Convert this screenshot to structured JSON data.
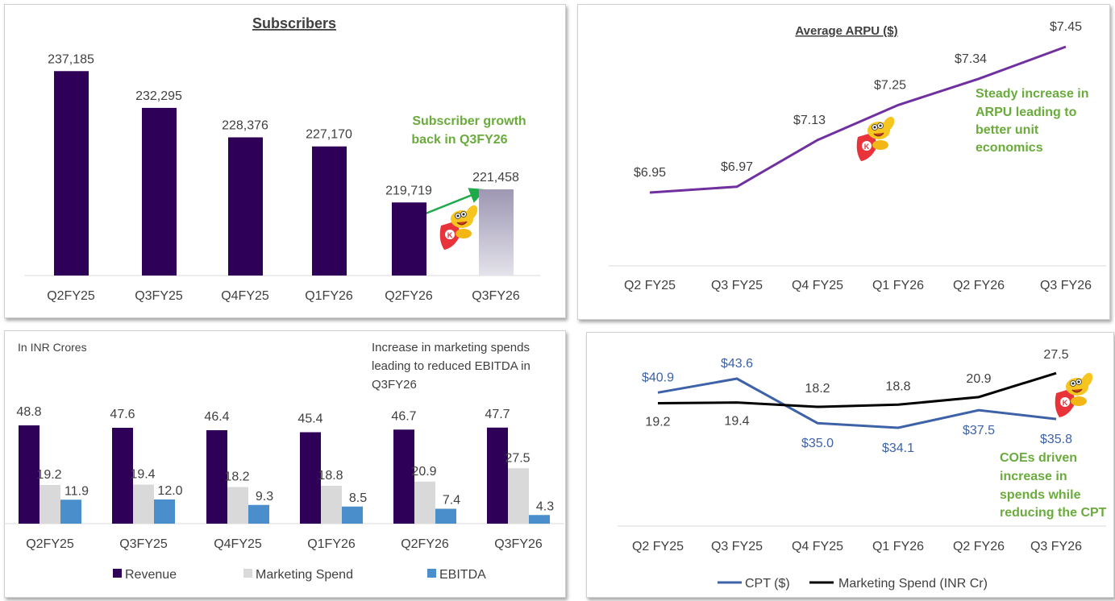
{
  "colors": {
    "purple": "#2e0057",
    "gray": "#d9d9d9",
    "blue": "#4a8fcc",
    "green": "#6aab3c",
    "arpu_line": "#7030a0",
    "cpt_line": "#3d62a8",
    "marketing_line": "#000000",
    "arrow": "#1faa4a"
  },
  "chart_data": [
    {
      "type": "bar",
      "title": "Subscribers",
      "categories": [
        "Q2FY25",
        "Q3FY25",
        "Q4FY25",
        "Q1FY26",
        "Q2FY26",
        "Q3FY26"
      ],
      "values": [
        237185,
        232295,
        228376,
        227170,
        219719,
        221458
      ],
      "labels": [
        "237,185",
        "232,295",
        "228,376",
        "227,170",
        "219,719",
        "221,458"
      ],
      "ylim": [
        210000,
        240000
      ],
      "annotation": [
        "Subscriber growth",
        "back in Q3FY26"
      ]
    },
    {
      "type": "line",
      "title": "Average ARPU ($)",
      "categories": [
        "Q2 FY25",
        "Q3 FY25",
        "Q4 FY25",
        "Q1 FY26",
        "Q2 FY26",
        "Q3 FY26"
      ],
      "values": [
        6.95,
        6.97,
        7.13,
        7.25,
        7.34,
        7.45
      ],
      "labels": [
        "$6.95",
        "$6.97",
        "$7.13",
        "$7.25",
        "$7.34",
        "$7.45"
      ],
      "ylim": [
        6.7,
        7.5
      ],
      "annotation": [
        "Steady increase in",
        "ARPU leading to",
        "better unit",
        "economics"
      ]
    },
    {
      "type": "bar",
      "subtitle": "In INR Crores",
      "categories": [
        "Q2FY25",
        "Q3FY25",
        "Q4FY25",
        "Q1FY26",
        "Q2FY26",
        "Q3FY26"
      ],
      "series": [
        {
          "name": "Revenue",
          "values": [
            48.8,
            47.6,
            46.4,
            45.4,
            46.7,
            47.7
          ],
          "labels": [
            "48.8",
            "47.6",
            "46.4",
            "45.4",
            "46.7",
            "47.7"
          ]
        },
        {
          "name": "Marketing Spend",
          "values": [
            19.2,
            19.4,
            18.2,
            18.8,
            20.9,
            27.5
          ],
          "labels": [
            "19.2",
            "19.4",
            "18.2",
            "18.8",
            "20.9",
            "27.5"
          ]
        },
        {
          "name": "EBITDA",
          "values": [
            11.9,
            12.0,
            9.3,
            8.5,
            7.4,
            4.3
          ],
          "labels": [
            "11.9",
            "12.0",
            "9.3",
            "8.5",
            "7.4",
            "4.3"
          ]
        }
      ],
      "ylim": [
        0,
        60
      ],
      "legend": "bottom",
      "annotation": [
        "Increase in marketing spends",
        "leading to reduced EBITDA in",
        "Q3FY26"
      ]
    },
    {
      "type": "line",
      "categories": [
        "Q2 FY25",
        "Q3 FY25",
        "Q4 FY25",
        "Q1 FY26",
        "Q2 FY26",
        "Q3 FY26"
      ],
      "series": [
        {
          "name": "CPT ($)",
          "values": [
            40.9,
            43.6,
            35.0,
            34.1,
            37.5,
            35.8
          ],
          "labels": [
            "$40.9",
            "$43.6",
            "$35.0",
            "$34.1",
            "$37.5",
            "$35.8"
          ]
        },
        {
          "name": "Marketing Spend (INR Cr)",
          "values": [
            19.2,
            19.4,
            18.2,
            18.8,
            20.9,
            27.5
          ],
          "labels": [
            "19.2",
            "19.4",
            "18.2",
            "18.8",
            "20.9",
            "27.5"
          ]
        }
      ],
      "legend": "bottom",
      "annotation": [
        "COEs driven",
        "increase in",
        "spends while",
        "reducing the CPT"
      ]
    }
  ]
}
